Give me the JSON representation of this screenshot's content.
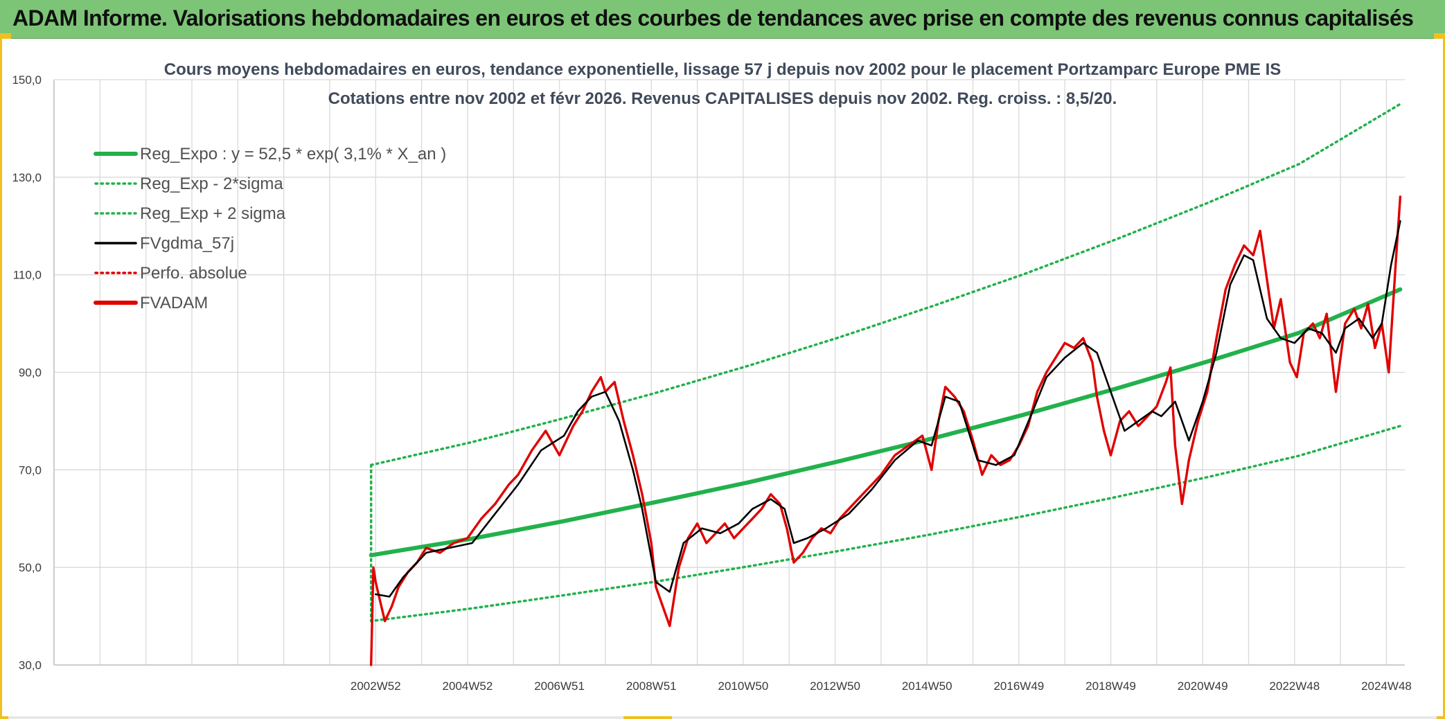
{
  "banner": {
    "title": "ADAM Informe. Valorisations hebdomadaires en euros et des courbes de tendances avec prise en compte des revenus connus capitalisés"
  },
  "chart_data": {
    "type": "line",
    "title_line1": "Cours moyens hebdomadaires en euros, tendance exponentielle, lissage 57 j depuis nov 2002 pour le placement Portzamparc Europe PME IS",
    "title_line2": "Cotations entre nov 2002 et févr 2026. Revenus CAPITALISES depuis nov 2002. Reg. croiss. : 8,5/20.",
    "ylim": [
      30,
      150
    ],
    "y_ticks": [
      {
        "value": 30,
        "label": "30,0"
      },
      {
        "value": 50,
        "label": "50,0"
      },
      {
        "value": 70,
        "label": "70,0"
      },
      {
        "value": 90,
        "label": "90,0"
      },
      {
        "value": 110,
        "label": "110,0"
      },
      {
        "value": 130,
        "label": "130,0"
      },
      {
        "value": 150,
        "label": "150,0"
      }
    ],
    "xlim": [
      1995.9,
      2025.3
    ],
    "x_ticks": [
      {
        "value": 2002.9,
        "label": "2002W52"
      },
      {
        "value": 2004.9,
        "label": "2004W52"
      },
      {
        "value": 2006.9,
        "label": "2006W51"
      },
      {
        "value": 2008.9,
        "label": "2008W51"
      },
      {
        "value": 2010.9,
        "label": "2010W50"
      },
      {
        "value": 2012.9,
        "label": "2012W50"
      },
      {
        "value": 2014.9,
        "label": "2014W50"
      },
      {
        "value": 2016.9,
        "label": "2016W49"
      },
      {
        "value": 2018.9,
        "label": "2018W49"
      },
      {
        "value": 2020.9,
        "label": "2020W49"
      },
      {
        "value": 2022.9,
        "label": "2022W48"
      },
      {
        "value": 2024.9,
        "label": "2024W48"
      }
    ],
    "grid": true,
    "legend": [
      {
        "name": "Reg_Expo : y = 52,5 * exp( 3,1% *  X_an )",
        "color": "#22b14c",
        "style": "solid-thick"
      },
      {
        "name": "Reg_Exp - 2*sigma",
        "color": "#22b14c",
        "style": "dotted"
      },
      {
        "name": "Reg_Exp + 2 sigma",
        "color": "#22b14c",
        "style": "dotted"
      },
      {
        "name": "FVgdma_57j",
        "color": "#000000",
        "style": "solid"
      },
      {
        "name": "Perfo. absolue",
        "color": "#e00000",
        "style": "dotted"
      },
      {
        "name": "FVADAM",
        "color": "#e00000",
        "style": "solid-thick"
      }
    ],
    "series": [
      {
        "name": "Reg_Expo",
        "color": "#22b14c",
        "x": [
          2002.8,
          2005,
          2007,
          2009,
          2011,
          2013,
          2015,
          2017,
          2019,
          2021,
          2023,
          2025.2
        ],
        "y": [
          52.5,
          55.9,
          59.5,
          63.4,
          67.4,
          71.8,
          76.4,
          81.3,
          86.6,
          92.2,
          98.1,
          107.0
        ]
      },
      {
        "name": "Reg_Exp - 2*sigma",
        "color": "#22b14c",
        "x": [
          2002.8,
          2002.8,
          2005,
          2007,
          2009,
          2011,
          2013,
          2015,
          2017,
          2019,
          2021,
          2023,
          2025.2
        ],
        "y": [
          71.0,
          39.0,
          41.6,
          44.3,
          47.1,
          50.2,
          53.4,
          56.8,
          60.5,
          64.4,
          68.5,
          72.9,
          79.0
        ]
      },
      {
        "name": "Reg_Exp + 2 sigma",
        "color": "#22b14c",
        "x": [
          2002.8,
          2005,
          2007,
          2009,
          2011,
          2013,
          2015,
          2017,
          2019,
          2021,
          2023,
          2025.2
        ],
        "y": [
          71.0,
          75.7,
          80.6,
          85.8,
          91.3,
          97.2,
          103.5,
          110.1,
          117.2,
          124.7,
          132.7,
          145.0
        ]
      },
      {
        "name": "FVgdma_57j",
        "color": "#000000",
        "x": [
          2002.9,
          2003.2,
          2003.5,
          2004.0,
          2004.5,
          2005.0,
          2005.5,
          2006.0,
          2006.5,
          2007.0,
          2007.3,
          2007.6,
          2007.9,
          2008.2,
          2008.5,
          2008.7,
          2009.0,
          2009.3,
          2009.6,
          2010.0,
          2010.4,
          2010.8,
          2011.1,
          2011.5,
          2011.8,
          2012.0,
          2012.3,
          2012.7,
          2013.2,
          2013.7,
          2014.2,
          2014.7,
          2015.0,
          2015.3,
          2015.6,
          2016.0,
          2016.4,
          2016.8,
          2017.2,
          2017.5,
          2017.9,
          2018.3,
          2018.6,
          2018.9,
          2019.2,
          2019.5,
          2019.8,
          2020.0,
          2020.3,
          2020.6,
          2020.9,
          2021.2,
          2021.5,
          2021.8,
          2022.0,
          2022.3,
          2022.6,
          2022.9,
          2023.2,
          2023.5,
          2023.8,
          2024.0,
          2024.3,
          2024.6,
          2024.8,
          2025.0,
          2025.2
        ],
        "y": [
          44.5,
          44.0,
          48.0,
          53.0,
          54.0,
          55.0,
          61.0,
          67.0,
          74.0,
          77.0,
          82.0,
          85.0,
          86.0,
          80.0,
          70.0,
          62.0,
          47.0,
          45.0,
          55.0,
          58.0,
          57.0,
          59.0,
          62.0,
          64.0,
          62.0,
          55.0,
          56.0,
          58.0,
          61.0,
          66.0,
          72.0,
          76.0,
          75.0,
          85.0,
          84.0,
          72.0,
          71.0,
          73.0,
          82.0,
          89.0,
          93.0,
          96.0,
          94.0,
          86.0,
          78.0,
          80.0,
          82.0,
          81.0,
          84.0,
          76.0,
          84.0,
          94.0,
          108.0,
          114.0,
          113.0,
          101.0,
          97.0,
          96.0,
          99.0,
          98.0,
          94.0,
          99.0,
          101.0,
          97.0,
          100.0,
          112.0,
          121.0
        ]
      },
      {
        "name": "FVADAM",
        "color": "#e00000",
        "x": [
          2002.8,
          2002.85,
          2002.9,
          2003.0,
          2003.1,
          2003.25,
          2003.4,
          2003.6,
          2003.8,
          2004.0,
          2004.3,
          2004.6,
          2004.9,
          2005.2,
          2005.5,
          2005.8,
          2006.0,
          2006.3,
          2006.6,
          2006.9,
          2007.2,
          2007.4,
          2007.6,
          2007.8,
          2007.9,
          2008.1,
          2008.3,
          2008.5,
          2008.7,
          2008.9,
          2009.0,
          2009.15,
          2009.3,
          2009.5,
          2009.7,
          2009.9,
          2010.1,
          2010.3,
          2010.5,
          2010.7,
          2010.9,
          2011.1,
          2011.3,
          2011.5,
          2011.7,
          2011.85,
          2012.0,
          2012.2,
          2012.4,
          2012.6,
          2012.8,
          2013.0,
          2013.3,
          2013.6,
          2013.9,
          2014.2,
          2014.5,
          2014.8,
          2015.0,
          2015.15,
          2015.3,
          2015.5,
          2015.7,
          2015.9,
          2016.1,
          2016.3,
          2016.5,
          2016.7,
          2016.9,
          2017.1,
          2017.3,
          2017.5,
          2017.7,
          2017.9,
          2018.1,
          2018.3,
          2018.5,
          2018.6,
          2018.75,
          2018.9,
          2019.1,
          2019.3,
          2019.5,
          2019.7,
          2019.9,
          2020.1,
          2020.2,
          2020.3,
          2020.45,
          2020.6,
          2020.8,
          2021.0,
          2021.2,
          2021.4,
          2021.6,
          2021.8,
          2022.0,
          2022.15,
          2022.3,
          2022.45,
          2022.6,
          2022.8,
          2022.95,
          2023.1,
          2023.3,
          2023.45,
          2023.6,
          2023.8,
          2024.0,
          2024.2,
          2024.35,
          2024.5,
          2024.65,
          2024.8,
          2024.95,
          2025.1,
          2025.2
        ],
        "y": [
          30.0,
          50.0,
          47.0,
          43.0,
          39.0,
          42.0,
          46.0,
          49.0,
          51.0,
          54.0,
          53.0,
          55.0,
          56.0,
          60.0,
          63.0,
          67.0,
          69.0,
          74.0,
          78.0,
          73.0,
          79.0,
          82.0,
          86.0,
          89.0,
          86.0,
          88.0,
          80.0,
          73.0,
          65.0,
          55.0,
          46.0,
          42.0,
          38.0,
          50.0,
          56.0,
          59.0,
          55.0,
          57.0,
          59.0,
          56.0,
          58.0,
          60.0,
          62.0,
          65.0,
          63.0,
          58.0,
          51.0,
          53.0,
          56.0,
          58.0,
          57.0,
          60.0,
          63.0,
          66.0,
          69.0,
          73.0,
          75.0,
          77.0,
          70.0,
          80.0,
          87.0,
          85.0,
          82.0,
          76.0,
          69.0,
          73.0,
          71.0,
          72.0,
          75.0,
          79.0,
          86.0,
          90.0,
          93.0,
          96.0,
          95.0,
          97.0,
          92.0,
          85.0,
          78.0,
          73.0,
          80.0,
          82.0,
          79.0,
          81.0,
          83.0,
          88.0,
          91.0,
          75.0,
          63.0,
          72.0,
          80.0,
          86.0,
          97.0,
          107.0,
          112.0,
          116.0,
          114.0,
          119.0,
          109.0,
          99.0,
          105.0,
          92.0,
          89.0,
          98.0,
          100.0,
          97.0,
          102.0,
          86.0,
          100.0,
          103.0,
          99.0,
          104.0,
          95.0,
          100.0,
          90.0,
          112.0,
          126.0
        ]
      }
    ]
  }
}
